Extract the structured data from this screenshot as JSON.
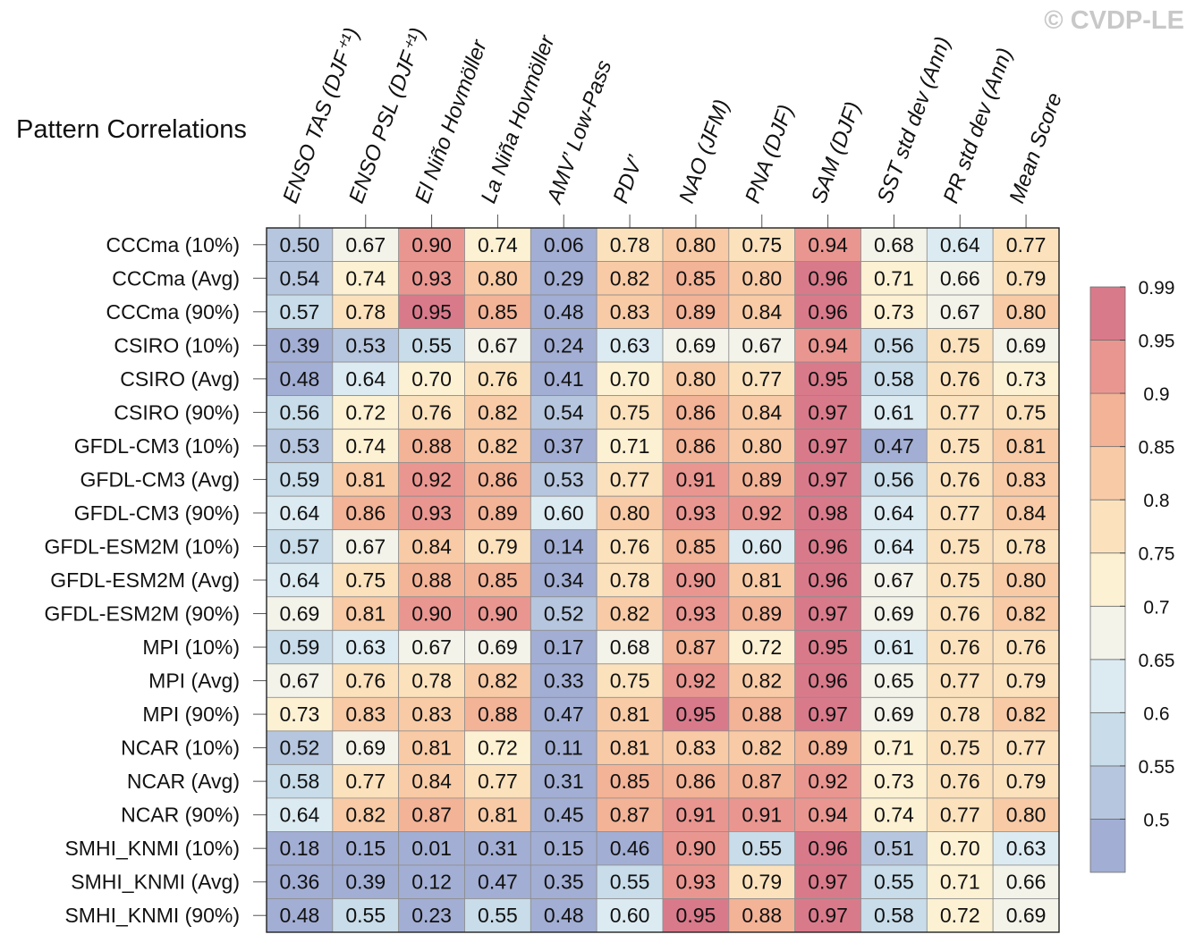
{
  "copyright": "© CVDP-LE",
  "chart_data": {
    "type": "heatmap",
    "title": "Pattern Correlations",
    "columns": [
      "ENSO TAS (DJF⁺¹)",
      "ENSO PSL (DJF⁺¹)",
      "El Niño Hovmöller",
      "La Niña Hovmöller",
      "AMV’ Low-Pass",
      "PDV’",
      "NAO (JFM)",
      "PNA (DJF)",
      "SAM (DJF)",
      "SST std dev (Ann)",
      "PR std dev (Ann)",
      "Mean Score"
    ],
    "rows": [
      "CCCma (10%)",
      "CCCma (Avg)",
      "CCCma (90%)",
      "CSIRO (10%)",
      "CSIRO (Avg)",
      "CSIRO (90%)",
      "GFDL-CM3 (10%)",
      "GFDL-CM3 (Avg)",
      "GFDL-CM3 (90%)",
      "GFDL-ESM2M (10%)",
      "GFDL-ESM2M (Avg)",
      "GFDL-ESM2M (90%)",
      "MPI (10%)",
      "MPI (Avg)",
      "MPI (90%)",
      "NCAR (10%)",
      "NCAR (Avg)",
      "NCAR (90%)",
      "SMHI_KNMI (10%)",
      "SMHI_KNMI (Avg)",
      "SMHI_KNMI (90%)"
    ],
    "values": [
      [
        "0.50",
        "0.67",
        "0.90",
        "0.74",
        "0.06",
        "0.78",
        "0.80",
        "0.75",
        "0.94",
        "0.68",
        "0.64",
        "0.77"
      ],
      [
        "0.54",
        "0.74",
        "0.93",
        "0.80",
        "0.29",
        "0.82",
        "0.85",
        "0.80",
        "0.96",
        "0.71",
        "0.66",
        "0.79"
      ],
      [
        "0.57",
        "0.78",
        "0.95",
        "0.85",
        "0.48",
        "0.83",
        "0.89",
        "0.84",
        "0.96",
        "0.73",
        "0.67",
        "0.80"
      ],
      [
        "0.39",
        "0.53",
        "0.55",
        "0.67",
        "0.24",
        "0.63",
        "0.69",
        "0.67",
        "0.94",
        "0.56",
        "0.75",
        "0.69"
      ],
      [
        "0.48",
        "0.64",
        "0.70",
        "0.76",
        "0.41",
        "0.70",
        "0.80",
        "0.77",
        "0.95",
        "0.58",
        "0.76",
        "0.73"
      ],
      [
        "0.56",
        "0.72",
        "0.76",
        "0.82",
        "0.54",
        "0.75",
        "0.86",
        "0.84",
        "0.97",
        "0.61",
        "0.77",
        "0.75"
      ],
      [
        "0.53",
        "0.74",
        "0.88",
        "0.82",
        "0.37",
        "0.71",
        "0.86",
        "0.80",
        "0.97",
        "0.47",
        "0.75",
        "0.81"
      ],
      [
        "0.59",
        "0.81",
        "0.92",
        "0.86",
        "0.53",
        "0.77",
        "0.91",
        "0.89",
        "0.97",
        "0.56",
        "0.76",
        "0.83"
      ],
      [
        "0.64",
        "0.86",
        "0.93",
        "0.89",
        "0.60",
        "0.80",
        "0.93",
        "0.92",
        "0.98",
        "0.64",
        "0.77",
        "0.84"
      ],
      [
        "0.57",
        "0.67",
        "0.84",
        "0.79",
        "0.14",
        "0.76",
        "0.85",
        "0.60",
        "0.96",
        "0.64",
        "0.75",
        "0.78"
      ],
      [
        "0.64",
        "0.75",
        "0.88",
        "0.85",
        "0.34",
        "0.78",
        "0.90",
        "0.81",
        "0.96",
        "0.67",
        "0.75",
        "0.80"
      ],
      [
        "0.69",
        "0.81",
        "0.90",
        "0.90",
        "0.52",
        "0.82",
        "0.93",
        "0.89",
        "0.97",
        "0.69",
        "0.76",
        "0.82"
      ],
      [
        "0.59",
        "0.63",
        "0.67",
        "0.69",
        "0.17",
        "0.68",
        "0.87",
        "0.72",
        "0.95",
        "0.61",
        "0.76",
        "0.76"
      ],
      [
        "0.67",
        "0.76",
        "0.78",
        "0.82",
        "0.33",
        "0.75",
        "0.92",
        "0.82",
        "0.96",
        "0.65",
        "0.77",
        "0.79"
      ],
      [
        "0.73",
        "0.83",
        "0.83",
        "0.88",
        "0.47",
        "0.81",
        "0.95",
        "0.88",
        "0.97",
        "0.69",
        "0.78",
        "0.82"
      ],
      [
        "0.52",
        "0.69",
        "0.81",
        "0.72",
        "0.11",
        "0.81",
        "0.83",
        "0.82",
        "0.89",
        "0.71",
        "0.75",
        "0.77"
      ],
      [
        "0.58",
        "0.77",
        "0.84",
        "0.77",
        "0.31",
        "0.85",
        "0.86",
        "0.87",
        "0.92",
        "0.73",
        "0.76",
        "0.79"
      ],
      [
        "0.64",
        "0.82",
        "0.87",
        "0.81",
        "0.45",
        "0.87",
        "0.91",
        "0.91",
        "0.94",
        "0.74",
        "0.77",
        "0.80"
      ],
      [
        "0.18",
        "0.15",
        "0.01",
        "0.31",
        "0.15",
        "0.46",
        "0.90",
        "0.55",
        "0.96",
        "0.51",
        "0.70",
        "0.63"
      ],
      [
        "0.36",
        "0.39",
        "0.12",
        "0.47",
        "0.35",
        "0.55",
        "0.93",
        "0.79",
        "0.97",
        "0.55",
        "0.71",
        "0.66"
      ],
      [
        "0.48",
        "0.55",
        "0.23",
        "0.55",
        "0.48",
        "0.60",
        "0.95",
        "0.88",
        "0.97",
        "0.58",
        "0.72",
        "0.69"
      ]
    ],
    "colorbar": {
      "levels": [
        0.5,
        0.55,
        0.6,
        0.65,
        0.7,
        0.75,
        0.8,
        0.85,
        0.9,
        0.95,
        0.99
      ],
      "tick_labels": [
        "0.5",
        "0.55",
        "0.6",
        "0.65",
        "0.7",
        "0.75",
        "0.8",
        "0.85",
        "0.9",
        "0.95",
        "0.99"
      ],
      "colors": [
        "#a2aed3",
        "#b6c6de",
        "#c8dce9",
        "#dcebf2",
        "#f3f3ea",
        "#fdf1d3",
        "#fbe2bd",
        "#f8cba6",
        "#f3b397",
        "#ea9690",
        "#d97a8b"
      ]
    }
  }
}
